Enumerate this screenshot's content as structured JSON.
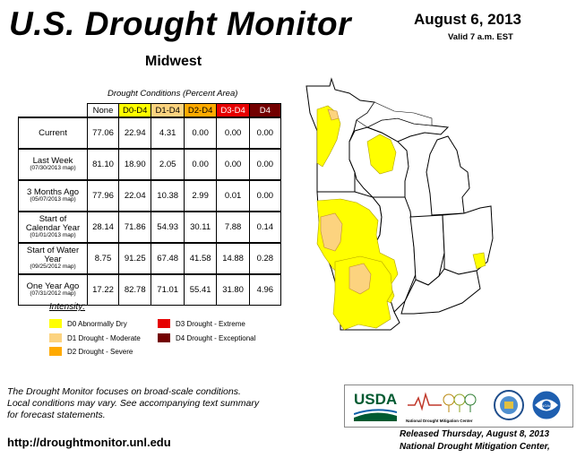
{
  "header": {
    "title": "U.S. Drought Monitor",
    "region": "Midwest",
    "date": "August 6, 2013",
    "valid": "Valid 7 a.m. EST"
  },
  "table": {
    "caption": "Drought Conditions (Percent Area)",
    "columns": [
      "None",
      "D0-D4",
      "D1-D4",
      "D2-D4",
      "D3-D4",
      "D4"
    ],
    "column_colors": [
      "#ffffff",
      "#ffff00",
      "#fcd37f",
      "#ffaa00",
      "#e60000",
      "#730000"
    ],
    "rows": [
      {
        "label": "Current",
        "sub": "",
        "values": [
          "77.06",
          "22.94",
          "4.31",
          "0.00",
          "0.00",
          "0.00"
        ]
      },
      {
        "label": "Last Week",
        "sub": "(07/30/2013 map)",
        "values": [
          "81.10",
          "18.90",
          "2.05",
          "0.00",
          "0.00",
          "0.00"
        ]
      },
      {
        "label": "3 Months Ago",
        "sub": "(05/07/2013 map)",
        "values": [
          "77.96",
          "22.04",
          "10.38",
          "2.99",
          "0.01",
          "0.00"
        ]
      },
      {
        "label": "Start of Calendar Year",
        "sub": "(01/01/2013 map)",
        "values": [
          "28.14",
          "71.86",
          "54.93",
          "30.11",
          "7.88",
          "0.14"
        ]
      },
      {
        "label": "Start of Water Year",
        "sub": "(09/25/2012 map)",
        "values": [
          "8.75",
          "91.25",
          "67.48",
          "41.58",
          "14.88",
          "0.28"
        ]
      },
      {
        "label": "One Year Ago",
        "sub": "(07/31/2012 map)",
        "values": [
          "17.22",
          "82.78",
          "71.01",
          "55.41",
          "31.80",
          "4.96"
        ]
      }
    ]
  },
  "legend": {
    "title": "Intensity:",
    "items": [
      {
        "label": "D0 Abnormally Dry",
        "color": "#ffff00"
      },
      {
        "label": "D1 Drought - Moderate",
        "color": "#fcd37f"
      },
      {
        "label": "D2 Drought - Severe",
        "color": "#ffaa00"
      },
      {
        "label": "D3 Drought - Extreme",
        "color": "#e60000"
      },
      {
        "label": "D4 Drought - Exceptional",
        "color": "#730000"
      }
    ]
  },
  "footer": {
    "note_1": "The Drought Monitor focuses on broad-scale conditions.",
    "note_2": "Local conditions may vary. See accompanying text summary",
    "note_3": "for forecast statements.",
    "url": "http://droughtmonitor.unl.edu",
    "released": "Released Thursday, August 8, 2013",
    "author": "National Drought Mitigation Center,"
  },
  "logos": {
    "usda": "USDA",
    "ndmc": "National Drought Mitigation Center",
    "noaa": "NOAA"
  }
}
